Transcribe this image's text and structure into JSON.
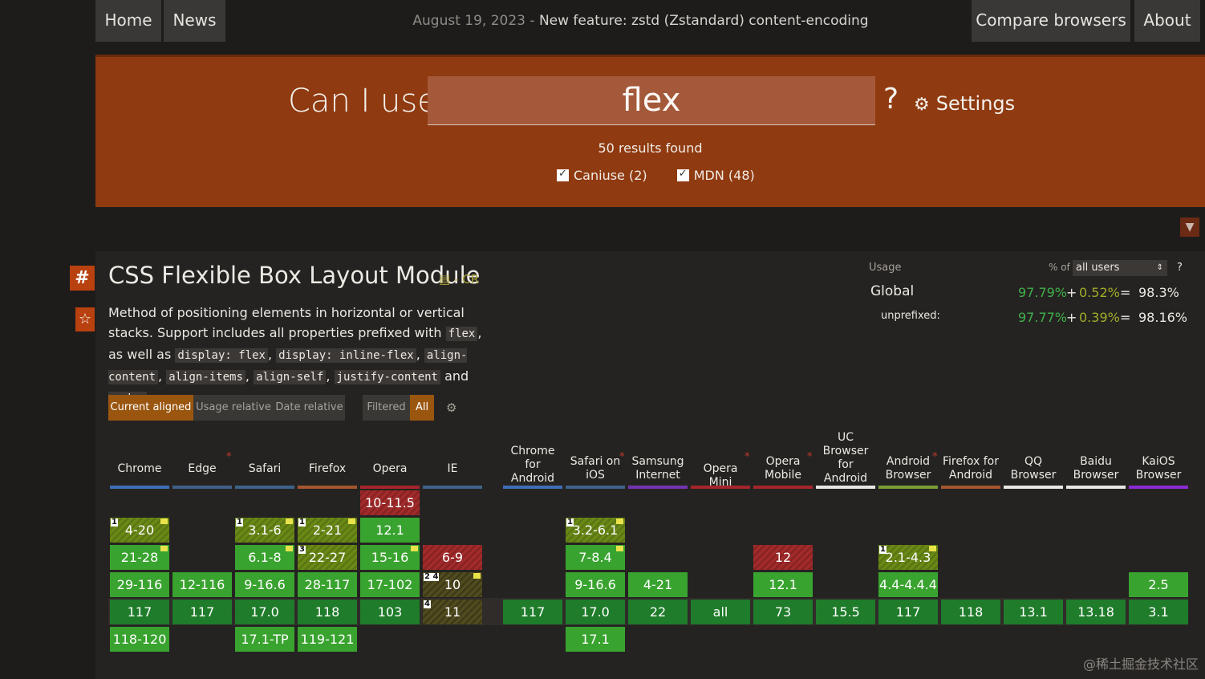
{
  "nav": {
    "home": "Home",
    "news": "News",
    "date": "August 19, 2023",
    "separator": " - ",
    "headline": "New feature: zstd (Zstandard) content-encoding",
    "compare": "Compare browsers",
    "about": "About"
  },
  "search": {
    "prefix": "Can I use",
    "query": "flex",
    "qmark": "?",
    "settings": "Settings",
    "results": "50 results found",
    "filters": [
      "Caniuse (2)",
      "MDN (48)"
    ]
  },
  "feature": {
    "hash": "#",
    "title": "CSS Flexible Box Layout Module",
    "spec": "- CR",
    "desc_1": "Method of positioning elements in horizontal or vertical stacks. Support includes all properties prefixed with",
    "code_flex": "flex",
    "desc_2": ", as well as",
    "code_1": "display: flex",
    "code_2": "display: inline-flex",
    "code_3": "align-content",
    "code_4": "align-items",
    "code_5": "align-self",
    "code_6": "justify-content",
    "and": "and",
    "code_7": "order",
    "period": "."
  },
  "usage": {
    "label": "Usage",
    "pct_of": "% of",
    "users": "all users",
    "help": "?",
    "global": "Global",
    "global_full": "97.79%",
    "global_plus": "+",
    "global_partial": "0.52%",
    "global_eq": "=",
    "global_total": "98.3%",
    "unprefixed": "unprefixed:",
    "unpref_full": "97.77%",
    "unpref_partial": "0.39%",
    "unpref_total": "98.16%"
  },
  "modes": {
    "current": "Current aligned",
    "usage": "Usage relative",
    "date": "Date relative",
    "filtered": "Filtered",
    "all": "All"
  },
  "browsers": [
    {
      "name": "Chrome",
      "color": "#3d6eb8"
    },
    {
      "name": "Edge",
      "color": "#3f5f87"
    },
    {
      "name": "Safari",
      "color": "#3e638a"
    },
    {
      "name": "Firefox",
      "color": "#a4552d"
    },
    {
      "name": "Opera",
      "color": "#a4252b"
    },
    {
      "name": "IE",
      "color": "#3e638a"
    },
    {
      "name": "Chrome for Android",
      "color": "#3d6eb8"
    },
    {
      "name": "Safari on iOS",
      "color": "#3e638a"
    },
    {
      "name": "Samsung Internet",
      "color": "#7434b1"
    },
    {
      "name": "Opera Mini",
      "color": "#a4252b"
    },
    {
      "name": "Opera Mobile",
      "color": "#a4252b"
    },
    {
      "name": "UC Browser for Android",
      "color": "#e8e6e3"
    },
    {
      "name": "Android Browser",
      "color": "#7a9e34"
    },
    {
      "name": "Firefox for Android",
      "color": "#a4552d"
    },
    {
      "name": "QQ Browser",
      "color": "#e8e6e3"
    },
    {
      "name": "Baidu Browser",
      "color": "#e8e6e3"
    },
    {
      "name": "KaiOS Browser",
      "color": "#8b2bd4"
    }
  ],
  "cells": {
    "chrome": [
      "4-20",
      "21-28",
      "29-116",
      "117",
      "118-120"
    ],
    "edge": [
      "12-116",
      "117"
    ],
    "safari": [
      "3.1-6",
      "6.1-8",
      "9-16.6",
      "17.0",
      "17.1-TP"
    ],
    "firefox": [
      "2-21",
      "22-27",
      "28-117",
      "118",
      "119-121"
    ],
    "opera": [
      "10-11.5",
      "12.1",
      "15-16",
      "17-102",
      "103"
    ],
    "ie": [
      "6-9",
      "10",
      "11"
    ],
    "chrome_android": [
      "117"
    ],
    "ios": [
      "3.2-6.1",
      "7-8.4",
      "9-16.6",
      "17.0",
      "17.1"
    ],
    "samsung": [
      "4-21",
      "22"
    ],
    "opera_mini": [
      "all"
    ],
    "opera_mobile": [
      "12",
      "12.1",
      "73"
    ],
    "uc": [
      "15.5"
    ],
    "android": [
      "2.1-4.3",
      "4.4-4.4.4",
      "117"
    ],
    "firefox_android": [
      "118"
    ],
    "qq": [
      "13.1"
    ],
    "baidu": [
      "13.18"
    ],
    "kaios": [
      "2.5",
      "3.1"
    ]
  },
  "notes": {
    "n1": "1",
    "n3": "3",
    "n24": "2 4",
    "n4": "4"
  },
  "watermark": "@稀土掘金技术社区"
}
